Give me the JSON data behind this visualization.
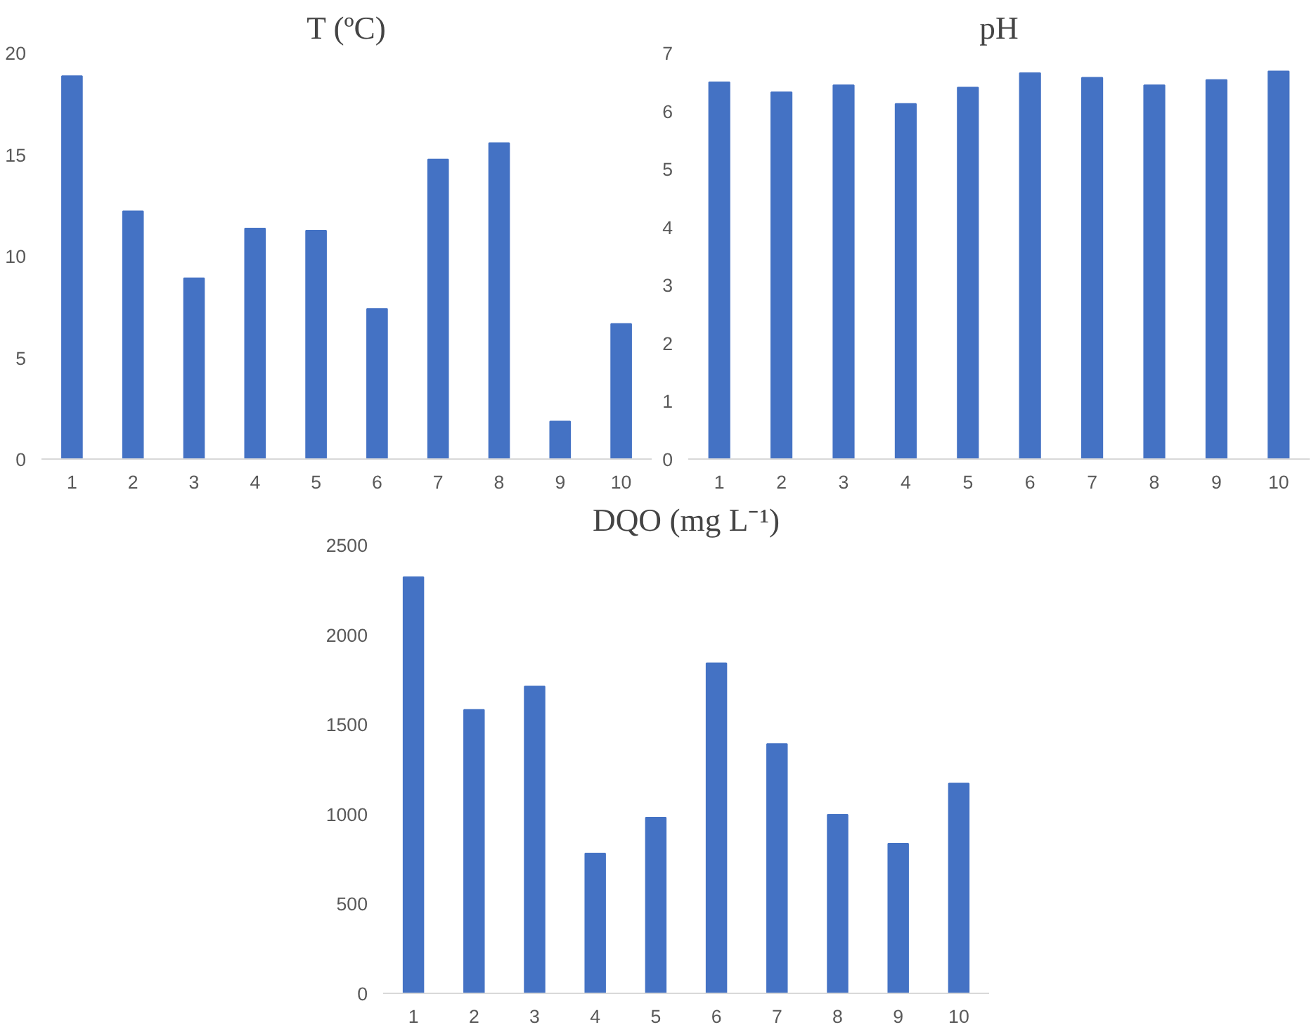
{
  "chart_data": [
    {
      "type": "bar",
      "title": "T (ºC)",
      "categories": [
        "1",
        "2",
        "3",
        "4",
        "5",
        "6",
        "7",
        "8",
        "9",
        "10"
      ],
      "values": [
        18.85,
        12.2,
        8.9,
        11.35,
        11.25,
        7.4,
        14.75,
        15.55,
        1.85,
        6.65
      ],
      "color": "#4472c4",
      "ylim": [
        0,
        20
      ],
      "yticks": [
        0,
        5,
        10,
        15,
        20
      ],
      "grid": false
    },
    {
      "type": "bar",
      "title": "pH",
      "categories": [
        "1",
        "2",
        "3",
        "4",
        "5",
        "6",
        "7",
        "8",
        "9",
        "10"
      ],
      "values": [
        6.49,
        6.32,
        6.44,
        6.12,
        6.4,
        6.65,
        6.57,
        6.44,
        6.53,
        6.68
      ],
      "color": "#4472c4",
      "ylim": [
        0,
        7
      ],
      "yticks": [
        0,
        1,
        2,
        3,
        4,
        5,
        6,
        7
      ],
      "grid": false
    },
    {
      "type": "bar",
      "title": "DQO (mg L⁻¹)",
      "categories": [
        "1",
        "2",
        "3",
        "4",
        "5",
        "6",
        "7",
        "8",
        "9",
        "10"
      ],
      "values": [
        2320,
        1580,
        1710,
        780,
        980,
        1840,
        1390,
        995,
        835,
        1170
      ],
      "color": "#4472c4",
      "ylim": [
        0,
        2500
      ],
      "yticks": [
        0,
        500,
        1000,
        1500,
        2000,
        2500
      ],
      "grid": false
    }
  ]
}
